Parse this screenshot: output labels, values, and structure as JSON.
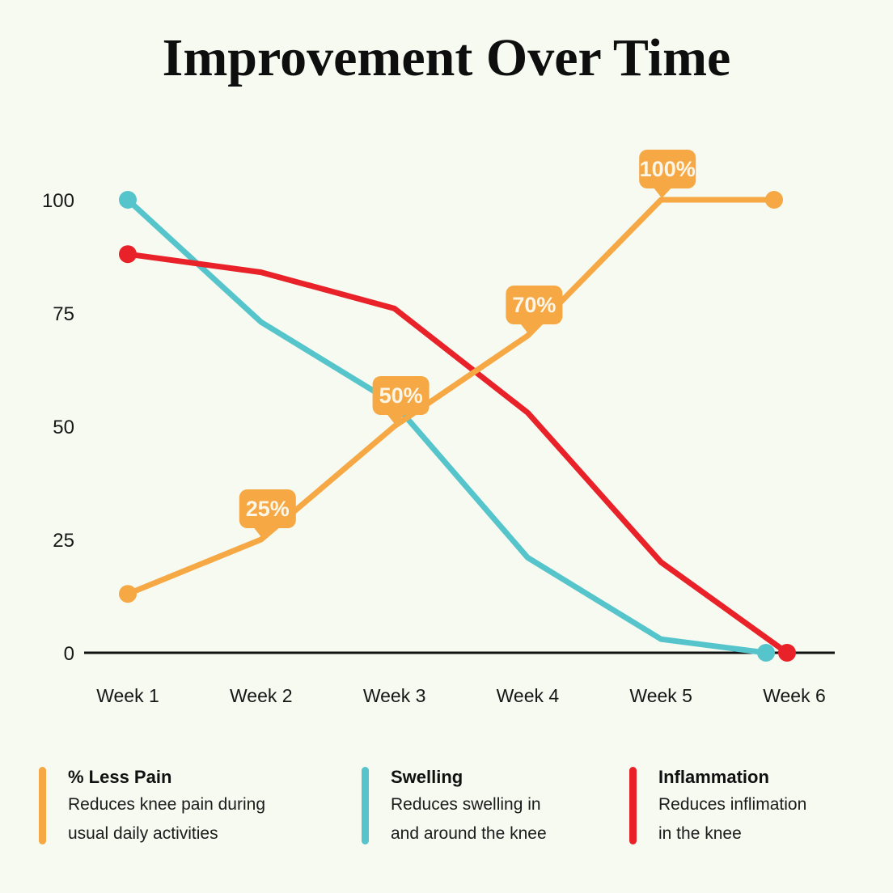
{
  "title": "Improvement Over Time",
  "colors": {
    "background": "#F7FAF1",
    "pain": "#F5A843",
    "swelling": "#56C5CB",
    "inflammation": "#E92128",
    "axis": "#111111",
    "tick_text": "#161616",
    "badge_text": "#FCF6E8",
    "title_text": "#0E0E0E"
  },
  "chart_data": {
    "type": "line",
    "title": "Improvement Over Time",
    "x_categories": [
      "Week 1",
      "Week 2",
      "Week 3",
      "Week 4",
      "Week 5",
      "Week 6"
    ],
    "y_ticks": [
      0,
      25,
      50,
      75,
      100
    ],
    "ylim": [
      0,
      100
    ],
    "grid": false,
    "legend_position": "bottom",
    "series": [
      {
        "name": "% Less Pain",
        "color": "#F5A843",
        "values": [
          13,
          25,
          50,
          70,
          100,
          100
        ],
        "data_labels": [
          null,
          "25%",
          "50%",
          "70%",
          "100%",
          null
        ],
        "markers": "endpoints"
      },
      {
        "name": "Swelling",
        "color": "#56C5CB",
        "values": [
          100,
          73,
          55,
          21,
          3,
          0
        ],
        "data_labels": [
          null,
          null,
          null,
          null,
          null,
          null
        ],
        "markers": "endpoints"
      },
      {
        "name": "Inflammation",
        "color": "#E92128",
        "values": [
          88,
          84,
          76,
          53,
          20,
          0
        ],
        "data_labels": [
          null,
          null,
          null,
          null,
          null,
          null
        ],
        "markers": "endpoints"
      }
    ]
  },
  "legend": {
    "items": [
      {
        "title": "% Less Pain",
        "description": [
          "Reduces knee pain during",
          "usual daily activities"
        ],
        "color": "#F5A843"
      },
      {
        "title": "Swelling",
        "description": [
          "Reduces swelling in",
          "and around the knee"
        ],
        "color": "#56C5CB"
      },
      {
        "title": "Inflammation",
        "description": [
          "Reduces inflimation",
          "in the knee"
        ],
        "color": "#E92128"
      }
    ]
  }
}
